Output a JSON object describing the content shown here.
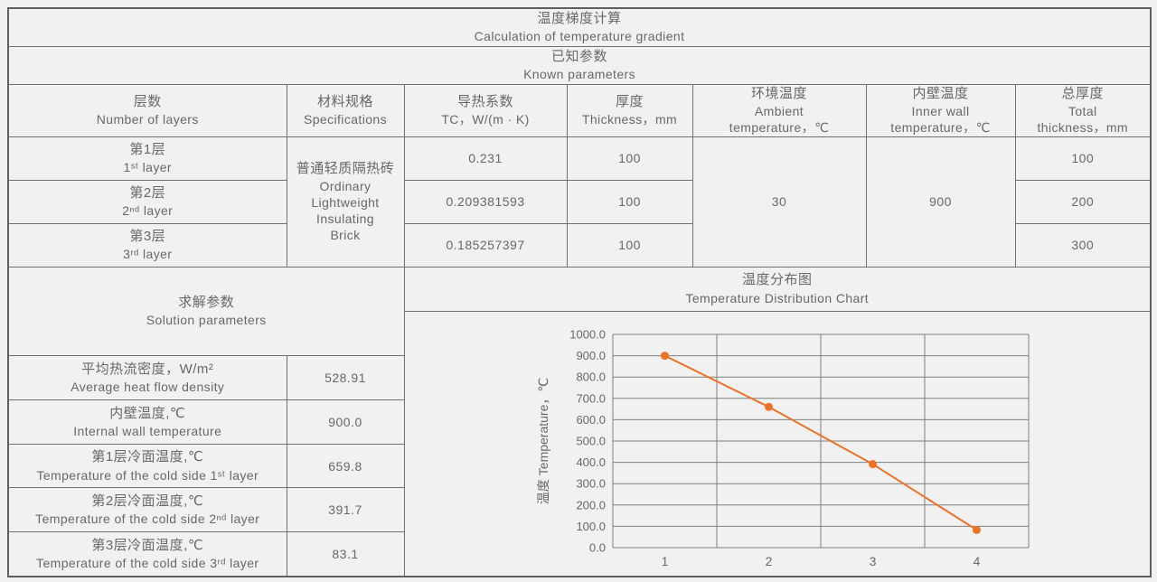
{
  "colors": {
    "background": "#f1f1f1",
    "border": "#6f6f6f",
    "text": "#686868",
    "grid": "#7f7f7f",
    "accent_orange": "#ed7225"
  },
  "title": {
    "zh": "温度梯度计算",
    "en": "Calculation of temperature gradient"
  },
  "known_section": {
    "zh": "已知参数",
    "en": "Known parameters"
  },
  "known_table": {
    "headers": [
      {
        "lines": [
          "层数",
          "Number of layers"
        ]
      },
      {
        "lines": [
          "材料规格",
          "Specifications"
        ]
      },
      {
        "lines": [
          "导热系数",
          "TC，W/(m · K)"
        ]
      },
      {
        "lines": [
          "厚度",
          "Thickness，mm"
        ]
      },
      {
        "lines": [
          "环境温度",
          "Ambient",
          "temperature，℃"
        ]
      },
      {
        "lines": [
          "内壁温度",
          "Inner wall",
          "temperature，℃"
        ]
      },
      {
        "lines": [
          "总厚度",
          "Total",
          "thickness，mm"
        ]
      }
    ],
    "material": {
      "zh": "普通轻质隔热砖",
      "en_lines": [
        "Ordinary",
        "Lightweight",
        "Insulating",
        "Brick"
      ]
    },
    "ambient_temperature": "30",
    "inner_wall_temperature": "900",
    "layers": [
      {
        "name_zh": "第1层",
        "name_en": "1ˢᵗ  layer",
        "tc": "0.231",
        "thickness": "100",
        "total_thickness": "100"
      },
      {
        "name_zh": "第2层",
        "name_en": "2ⁿᵈ layer",
        "tc": "0.209381593",
        "thickness": "100",
        "total_thickness": "200"
      },
      {
        "name_zh": "第3层",
        "name_en": "3ʳᵈ layer",
        "tc": "0.185257397",
        "thickness": "100",
        "total_thickness": "300"
      }
    ]
  },
  "solution": {
    "header": {
      "zh": "求解参数",
      "en": "Solution parameters"
    },
    "rows": [
      {
        "zh": "平均热流密度，W/m²",
        "en": "Average heat flow density",
        "value": "528.91"
      },
      {
        "zh": "内壁温度,℃",
        "en": "Internal wall temperature",
        "value": "900.0"
      },
      {
        "zh": "第1层冷面温度,℃",
        "en": "Temperature of the cold side 1ˢᵗ layer",
        "value": "659.8"
      },
      {
        "zh": "第2层冷面温度,℃",
        "en": "Temperature of the cold side 2ⁿᵈ layer",
        "value": "391.7"
      },
      {
        "zh": "第3层冷面温度,℃",
        "en": "Temperature of the cold side 3ʳᵈ layer",
        "value": "83.1"
      }
    ]
  },
  "chart_section": {
    "title_zh": "温度分布图",
    "title_en": "Temperature Distribution Chart"
  },
  "chart_data": {
    "type": "line",
    "title": "温度分布图 Temperature Distribution Chart",
    "x": [
      "1",
      "2",
      "3",
      "4"
    ],
    "values": [
      900.0,
      659.8,
      391.7,
      83.1
    ],
    "xlabel": "",
    "ylabel": "温度 Temperature，℃",
    "ylim": [
      0,
      1000
    ],
    "ytick_step": 100,
    "ytick_decimals": 1,
    "grid": true,
    "legend": "none",
    "line_color": "#ed7225",
    "marker": "circle"
  }
}
